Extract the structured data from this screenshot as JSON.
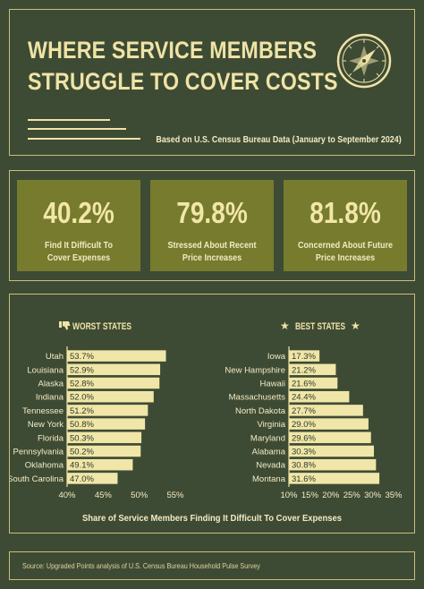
{
  "header": {
    "title_line1": "WHERE SERVICE MEMBERS",
    "title_line2": "STRUGGLE TO COVER COSTS",
    "subtitle": "Based on U.S. Census Bureau Data (January to September 2024)"
  },
  "stats": [
    {
      "value": "40.2%",
      "label_line1": "Find It Difficult To",
      "label_line2": "Cover Expenses"
    },
    {
      "value": "79.8%",
      "label_line1": "Stressed About Recent",
      "label_line2": "Price Increases"
    },
    {
      "value": "81.8%",
      "label_line1": "Concerned About Future",
      "label_line2": "Price Increases"
    }
  ],
  "colors": {
    "background": "#3e4b34",
    "accent": "#efe3a6",
    "bar": "#f0e6a8",
    "card": "#767b2e"
  },
  "chart_data": [
    {
      "type": "bar",
      "orientation": "horizontal",
      "title": "WORST STATES",
      "categories": [
        "Utah",
        "Louisiana",
        "Alaska",
        "Indiana",
        "Tennessee",
        "New York",
        "Florida",
        "Pennsylvania",
        "Oklahoma",
        "South Carolina"
      ],
      "values": [
        53.7,
        52.9,
        52.8,
        52.0,
        51.2,
        50.8,
        50.3,
        50.2,
        49.1,
        47.0
      ],
      "labels": [
        "53.7%",
        "52.9%",
        "52.8%",
        "52.0%",
        "51.2%",
        "50.8%",
        "50.3%",
        "50.2%",
        "49.1%",
        "47.0%"
      ],
      "xlim": [
        40,
        55
      ],
      "xticks": [
        40,
        45,
        50,
        55
      ],
      "xtick_labels": [
        "40%",
        "45%",
        "50%",
        "55%"
      ]
    },
    {
      "type": "bar",
      "orientation": "horizontal",
      "title": "BEST STATES",
      "categories": [
        "Iowa",
        "New Hampshire",
        "Hawaii",
        "Massachusetts",
        "North Dakota",
        "Virginia",
        "Maryland",
        "Alabama",
        "Nevada",
        "Montana"
      ],
      "values": [
        17.3,
        21.2,
        21.6,
        24.4,
        27.7,
        29.0,
        29.6,
        30.3,
        30.8,
        31.6
      ],
      "labels": [
        "17.3%",
        "21.2%",
        "21.6%",
        "24.4%",
        "27.7%",
        "29.0%",
        "29.6%",
        "30.3%",
        "30.8%",
        "31.6%"
      ],
      "xlim": [
        10,
        35
      ],
      "xticks": [
        10,
        15,
        20,
        25,
        30,
        35
      ],
      "xtick_labels": [
        "10%",
        "15%",
        "20%",
        "25%",
        "30%",
        "35%"
      ]
    }
  ],
  "chart_caption": "Share of Service Members Finding It Difficult To Cover Expenses",
  "footer": {
    "source": "Source: Upgraded Points analysis of U.S. Census Bureau Household Pulse Survey"
  }
}
